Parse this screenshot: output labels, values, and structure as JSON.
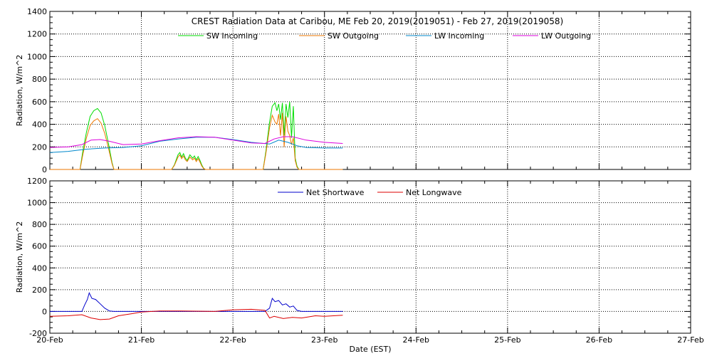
{
  "chart_data": [
    {
      "type": "line",
      "title": "CREST Radiation Data at Caribou, ME   Feb 20, 2019(2019051) - Feb 27, 2019(2019058)",
      "xlabel": "",
      "ylabel": "Radiation, W/m^2",
      "xlim": [
        "20-Feb",
        "27-Feb"
      ],
      "ylim": [
        0,
        1400
      ],
      "yticks": [
        0,
        200,
        400,
        600,
        800,
        1000,
        1200,
        1400
      ],
      "grid": true,
      "legend_position": "top",
      "series": [
        {
          "name": "SW Incoming",
          "color": "#00dd00",
          "x": [
            0.0,
            0.33,
            0.36,
            0.4,
            0.44,
            0.48,
            0.52,
            0.56,
            0.6,
            0.64,
            0.68,
            0.7,
            0.75,
            1.0,
            1.33,
            1.36,
            1.4,
            1.42,
            1.44,
            1.46,
            1.48,
            1.5,
            1.53,
            1.56,
            1.58,
            1.6,
            1.62,
            1.64,
            1.66,
            1.68,
            1.7,
            1.75,
            2.0,
            2.33,
            2.36,
            2.4,
            2.43,
            2.46,
            2.48,
            2.5,
            2.52,
            2.54,
            2.56,
            2.58,
            2.6,
            2.62,
            2.64,
            2.66,
            2.68,
            2.7,
            2.72,
            2.75,
            3.0,
            3.2
          ],
          "y": [
            0,
            0,
            160,
            330,
            470,
            520,
            540,
            500,
            390,
            230,
            60,
            0,
            0,
            0,
            0,
            40,
            130,
            150,
            110,
            140,
            100,
            80,
            130,
            100,
            120,
            85,
            115,
            80,
            40,
            10,
            0,
            0,
            0,
            0,
            160,
            420,
            560,
            590,
            520,
            580,
            440,
            590,
            300,
            580,
            460,
            600,
            280,
            560,
            100,
            30,
            0,
            0,
            0,
            0
          ]
        },
        {
          "name": "SW Outgoing",
          "color": "#ee7700",
          "x": [
            0.0,
            0.33,
            0.36,
            0.4,
            0.44,
            0.48,
            0.52,
            0.56,
            0.6,
            0.64,
            0.68,
            0.7,
            0.75,
            1.0,
            1.33,
            1.36,
            1.4,
            1.42,
            1.44,
            1.46,
            1.48,
            1.5,
            1.53,
            1.56,
            1.58,
            1.6,
            1.62,
            1.64,
            1.66,
            1.68,
            1.7,
            1.75,
            2.0,
            2.33,
            2.36,
            2.4,
            2.43,
            2.46,
            2.48,
            2.5,
            2.52,
            2.54,
            2.56,
            2.58,
            2.6,
            2.62,
            2.64,
            2.66,
            2.68,
            2.7,
            2.72,
            2.75,
            3.0,
            3.2
          ],
          "y": [
            0,
            0,
            130,
            280,
            390,
            430,
            450,
            410,
            320,
            190,
            50,
            0,
            0,
            0,
            0,
            35,
            110,
            130,
            95,
            120,
            85,
            70,
            110,
            85,
            100,
            70,
            95,
            65,
            30,
            8,
            0,
            0,
            0,
            0,
            140,
            370,
            480,
            420,
            400,
            490,
            300,
            500,
            200,
            470,
            340,
            300,
            220,
            280,
            80,
            20,
            0,
            0,
            0,
            0
          ]
        },
        {
          "name": "LW Incoming",
          "color": "#0088cc",
          "x": [
            0.0,
            0.2,
            0.4,
            0.6,
            0.8,
            1.0,
            1.2,
            1.4,
            1.6,
            1.8,
            2.0,
            2.2,
            2.4,
            2.5,
            2.6,
            2.7,
            2.8,
            3.0,
            3.2
          ],
          "y": [
            150,
            160,
            180,
            190,
            195,
            210,
            250,
            270,
            285,
            285,
            265,
            240,
            225,
            260,
            240,
            210,
            195,
            190,
            190
          ]
        },
        {
          "name": "LW Outgoing",
          "color": "#dd00dd",
          "x": [
            0.0,
            0.2,
            0.35,
            0.45,
            0.55,
            0.65,
            0.8,
            1.0,
            1.2,
            1.4,
            1.6,
            1.8,
            2.0,
            2.2,
            2.35,
            2.45,
            2.55,
            2.65,
            2.8,
            3.0,
            3.2
          ],
          "y": [
            195,
            200,
            220,
            260,
            265,
            250,
            220,
            225,
            255,
            280,
            290,
            285,
            260,
            235,
            230,
            270,
            290,
            290,
            260,
            240,
            230
          ]
        }
      ]
    },
    {
      "type": "line",
      "title": "",
      "xlabel": "Date (EST)",
      "ylabel": "Radiation, W/m^2",
      "ylim": [
        -200,
        1200
      ],
      "yticks": [
        -200,
        0,
        200,
        400,
        600,
        800,
        1000,
        1200
      ],
      "categories": [
        "20-Feb",
        "21-Feb",
        "22-Feb",
        "23-Feb",
        "24-Feb",
        "25-Feb",
        "26-Feb",
        "27-Feb"
      ],
      "grid": true,
      "legend_position": "top",
      "series": [
        {
          "name": "Net Shortwave",
          "color": "#0000cc",
          "x": [
            0.0,
            0.35,
            0.38,
            0.41,
            0.43,
            0.46,
            0.5,
            0.55,
            0.6,
            0.65,
            0.7,
            1.0,
            1.33,
            1.7,
            2.0,
            2.35,
            2.4,
            2.43,
            2.46,
            2.5,
            2.54,
            2.58,
            2.62,
            2.66,
            2.7,
            2.75,
            3.0,
            3.2
          ],
          "y": [
            0,
            0,
            60,
            110,
            170,
            120,
            110,
            70,
            30,
            5,
            0,
            0,
            0,
            0,
            0,
            0,
            30,
            120,
            90,
            100,
            60,
            70,
            40,
            50,
            10,
            0,
            0,
            0
          ]
        },
        {
          "name": "Net Longwave",
          "color": "#dd0000",
          "x": [
            0.0,
            0.2,
            0.35,
            0.45,
            0.55,
            0.65,
            0.75,
            0.9,
            1.0,
            1.2,
            1.4,
            1.6,
            1.8,
            2.0,
            2.2,
            2.35,
            2.4,
            2.45,
            2.55,
            2.65,
            2.75,
            2.9,
            3.0,
            3.2
          ],
          "y": [
            -45,
            -40,
            -30,
            -60,
            -75,
            -70,
            -40,
            -20,
            -5,
            5,
            5,
            3,
            0,
            15,
            20,
            10,
            -60,
            -45,
            -65,
            -55,
            -60,
            -40,
            -45,
            -35
          ]
        }
      ]
    }
  ]
}
